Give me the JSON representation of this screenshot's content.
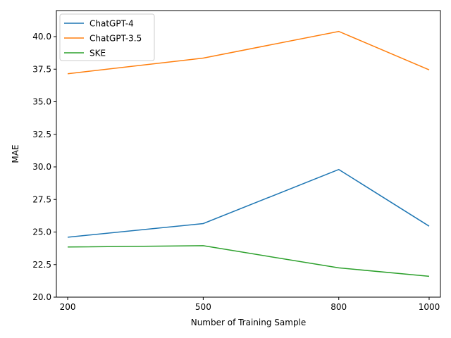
{
  "chart_data": {
    "type": "line",
    "title": "",
    "xlabel": "Number of Training Sample",
    "ylabel": "MAE",
    "x": [
      200,
      500,
      800,
      1000
    ],
    "xticks": [
      "200",
      "500",
      "800",
      "1000"
    ],
    "xlim": [
      175,
      1025
    ],
    "ylim": [
      20.0,
      42.0
    ],
    "yticks": [
      "20.0",
      "22.5",
      "25.0",
      "27.5",
      "30.0",
      "32.5",
      "35.0",
      "37.5",
      "40.0"
    ],
    "grid": false,
    "legend_position": "top-left",
    "series": [
      {
        "name": "ChatGPT-4",
        "color": "#1f77b4",
        "values": [
          24.6,
          25.65,
          29.8,
          25.45
        ]
      },
      {
        "name": "ChatGPT-3.5",
        "color": "#ff7f0e",
        "values": [
          37.15,
          38.35,
          40.4,
          37.45
        ]
      },
      {
        "name": "SKE",
        "color": "#2ca02c",
        "values": [
          23.85,
          23.95,
          22.25,
          21.6
        ]
      }
    ]
  }
}
